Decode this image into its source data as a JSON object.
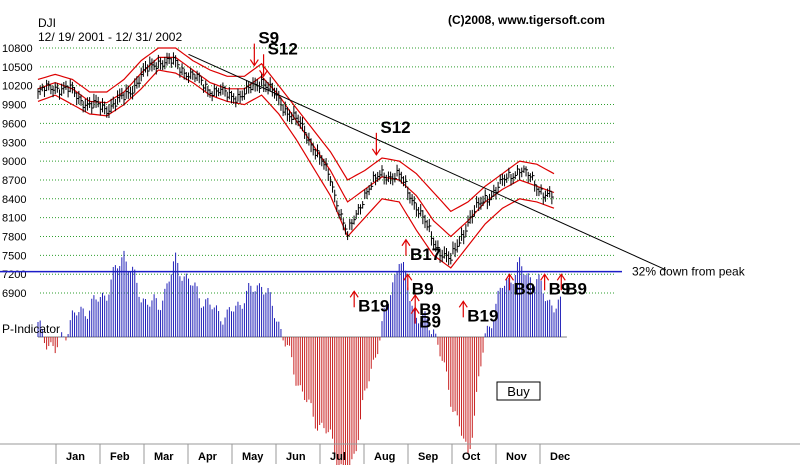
{
  "chart_data": {
    "type": "line",
    "ticker": "DJI",
    "date_range": "12/ 19/ 2001 - 12/ 31/ 2002",
    "copyright": "(C)2008, www.tigersoft.com",
    "y_ticks": [
      10800,
      10500,
      10200,
      9900,
      9600,
      9300,
      9000,
      8700,
      8400,
      8100,
      7800,
      7500,
      7200,
      6900
    ],
    "ylim": [
      6800,
      10900
    ],
    "months": [
      "Jan",
      "Feb",
      "Mar",
      "Apr",
      "May",
      "Jun",
      "Jul",
      "Aug",
      "Sep",
      "Oct",
      "Nov",
      "Dec"
    ],
    "series": [
      {
        "kind": "price",
        "x": [
          0,
          0.4,
          0.8,
          1.2,
          1.6,
          2.0,
          2.4,
          2.8,
          3.2,
          3.6,
          4.0,
          4.4,
          4.8,
          5.2,
          5.6,
          6.0,
          6.4,
          6.8,
          7.2,
          7.6,
          8.0,
          8.4,
          8.8,
          9.2,
          9.6,
          10.0,
          10.4,
          10.8,
          11.2,
          11.6,
          12.0
        ],
        "values": [
          10080,
          10200,
          10100,
          9880,
          9850,
          10000,
          10350,
          10600,
          10550,
          10350,
          10150,
          10050,
          10050,
          10300,
          9950,
          9650,
          9250,
          8700,
          7800,
          8500,
          8800,
          8750,
          8300,
          7700,
          7400,
          8050,
          8400,
          8650,
          8900,
          8600,
          8400
        ]
      }
    ],
    "bands": {
      "upper": [
        10300,
        10380,
        10300,
        10100,
        10100,
        10300,
        10600,
        10800,
        10800,
        10600,
        10450,
        10350,
        10350,
        10550,
        10200,
        9850,
        9500,
        9150,
        8700,
        8850,
        9050,
        9000,
        8800,
        8500,
        8200,
        8350,
        8600,
        8800,
        9000,
        8950,
        8800
      ],
      "middle": [
        10150,
        10250,
        10150,
        9950,
        9930,
        10100,
        10400,
        10650,
        10650,
        10450,
        10250,
        10150,
        10150,
        10350,
        10050,
        9650,
        9250,
        8850,
        8350,
        8550,
        8750,
        8700,
        8450,
        8050,
        7800,
        8050,
        8350,
        8550,
        8700,
        8600,
        8500
      ],
      "lower": [
        9950,
        10050,
        9900,
        9750,
        9720,
        9900,
        10150,
        10450,
        10400,
        10250,
        10050,
        9950,
        9900,
        10050,
        9750,
        9350,
        8900,
        8450,
        7800,
        8100,
        8400,
        8350,
        7900,
        7500,
        7300,
        7650,
        8000,
        8250,
        8400,
        8350,
        8250
      ]
    },
    "p_indicator": {
      "label": "P-Indicator",
      "x": [
        0,
        0.4,
        0.8,
        1.2,
        1.6,
        2.0,
        2.4,
        2.8,
        3.2,
        3.6,
        4.0,
        4.4,
        4.8,
        5.2,
        5.6,
        6.0,
        6.4,
        6.8,
        7.2,
        7.6,
        8.0,
        8.4,
        8.8,
        9.2,
        9.6,
        10.0,
        10.4,
        10.8,
        11.2,
        11.6,
        12.0
      ],
      "values": [
        10,
        -15,
        20,
        30,
        45,
        85,
        40,
        30,
        75,
        50,
        30,
        20,
        40,
        55,
        15,
        -40,
        -80,
        -100,
        -150,
        -60,
        10,
        80,
        20,
        10,
        -60,
        -120,
        0,
        50,
        70,
        55,
        30
      ]
    },
    "signals": [
      {
        "label": "S9",
        "type": "sell",
        "x": 5.85,
        "value": 10520
      },
      {
        "label": "S12",
        "type": "sell",
        "x": 6.1,
        "value": 10350
      },
      {
        "label": "S12",
        "type": "sell",
        "x": 9.15,
        "value": 9100
      },
      {
        "label": "B19",
        "type": "buy",
        "x": 8.55,
        "value": 6960
      },
      {
        "label": "B17",
        "type": "buy",
        "x": 9.95,
        "value": 7780
      },
      {
        "label": "B9",
        "type": "buy",
        "x": 10.0,
        "value": 7230
      },
      {
        "label": "B9",
        "type": "buy",
        "x": 10.2,
        "value": 6900
      },
      {
        "label": "B9",
        "type": "buy",
        "x": 10.2,
        "value": 6700
      },
      {
        "label": "B19",
        "type": "buy",
        "x": 11.5,
        "value": 6800
      },
      {
        "label": "B9",
        "type": "buy",
        "x": 12.75,
        "value": 7230
      },
      {
        "label": "B9",
        "type": "buy",
        "x": 13.7,
        "value": 7230
      },
      {
        "label": "B9",
        "type": "buy",
        "x": 14.15,
        "value": 7230
      }
    ],
    "trendline": {
      "from": [
        3.5,
        10700
      ],
      "to": [
        14.6,
        7270
      ]
    },
    "support_line": {
      "value": 7240,
      "label": "32% down from peak"
    },
    "button_label": "Buy"
  }
}
